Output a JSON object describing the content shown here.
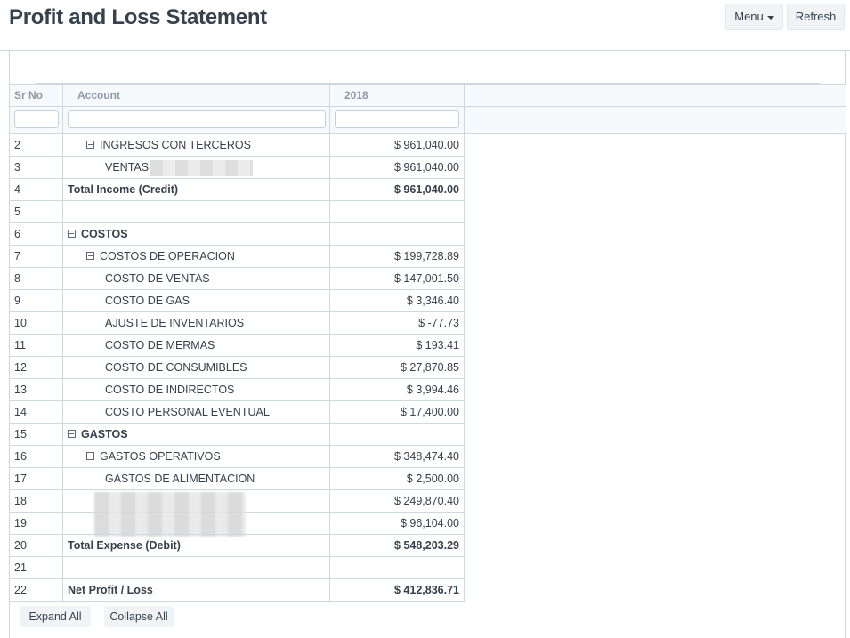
{
  "page": {
    "title": "Profit and Loss Statement"
  },
  "toolbar": {
    "menu_label": "Menu",
    "refresh_label": "Refresh"
  },
  "grid": {
    "columns": [
      "Sr No",
      "Account",
      "2018"
    ],
    "rows": [
      {
        "sr": "2",
        "account": "INGRESOS CON TERCEROS",
        "value": "$ 961,040.00",
        "level": 1,
        "toggle": true,
        "bold": false
      },
      {
        "sr": "3",
        "account": "VENTAS",
        "value": "$ 961,040.00",
        "level": 2,
        "toggle": false,
        "bold": false,
        "redacted": true
      },
      {
        "sr": "4",
        "account": "Total Income (Credit)",
        "value": "$ 961,040.00",
        "level": 0,
        "toggle": false,
        "bold": true
      },
      {
        "sr": "5",
        "account": "",
        "value": "",
        "level": 0,
        "toggle": false,
        "bold": false
      },
      {
        "sr": "6",
        "account": "COSTOS",
        "value": "",
        "level": 0,
        "toggle": true,
        "bold": true
      },
      {
        "sr": "7",
        "account": "COSTOS DE OPERACION",
        "value": "$ 199,728.89",
        "level": 1,
        "toggle": true,
        "bold": false
      },
      {
        "sr": "8",
        "account": "COSTO DE VENTAS",
        "value": "$ 147,001.50",
        "level": 2,
        "toggle": false,
        "bold": false
      },
      {
        "sr": "9",
        "account": "COSTO DE GAS",
        "value": "$ 3,346.40",
        "level": 2,
        "toggle": false,
        "bold": false
      },
      {
        "sr": "10",
        "account": "AJUSTE DE INVENTARIOS",
        "value": "$ -77.73",
        "level": 2,
        "toggle": false,
        "bold": false
      },
      {
        "sr": "11",
        "account": "COSTO DE MERMAS",
        "value": "$ 193.41",
        "level": 2,
        "toggle": false,
        "bold": false
      },
      {
        "sr": "12",
        "account": "COSTO DE CONSUMIBLES",
        "value": "$ 27,870.85",
        "level": 2,
        "toggle": false,
        "bold": false
      },
      {
        "sr": "13",
        "account": "COSTO DE INDIRECTOS",
        "value": "$ 3,994.46",
        "level": 2,
        "toggle": false,
        "bold": false
      },
      {
        "sr": "14",
        "account": "COSTO PERSONAL EVENTUAL",
        "value": "$ 17,400.00",
        "level": 2,
        "toggle": false,
        "bold": false
      },
      {
        "sr": "15",
        "account": "GASTOS",
        "value": "",
        "level": 0,
        "toggle": true,
        "bold": true
      },
      {
        "sr": "16",
        "account": "GASTOS OPERATIVOS",
        "value": "$ 348,474.40",
        "level": 1,
        "toggle": true,
        "bold": false
      },
      {
        "sr": "17",
        "account": "GASTOS DE ALIMENTACION",
        "value": "$ 2,500.00",
        "level": 2,
        "toggle": false,
        "bold": false
      },
      {
        "sr": "18",
        "account": "",
        "value": "$ 249,870.40",
        "level": 2,
        "toggle": false,
        "bold": false
      },
      {
        "sr": "19",
        "account": "",
        "value": "$ 96,104.00",
        "level": 2,
        "toggle": false,
        "bold": false
      },
      {
        "sr": "20",
        "account": "Total Expense (Debit)",
        "value": "$ 548,203.29",
        "level": 0,
        "toggle": false,
        "bold": true
      },
      {
        "sr": "21",
        "account": "",
        "value": "",
        "level": 0,
        "toggle": false,
        "bold": false
      },
      {
        "sr": "22",
        "account": "Net Profit / Loss",
        "value": "$ 412,836.71",
        "level": 0,
        "toggle": false,
        "bold": true
      }
    ]
  },
  "actions": {
    "expand_all": "Expand All",
    "collapse_all": "Collapse All"
  }
}
